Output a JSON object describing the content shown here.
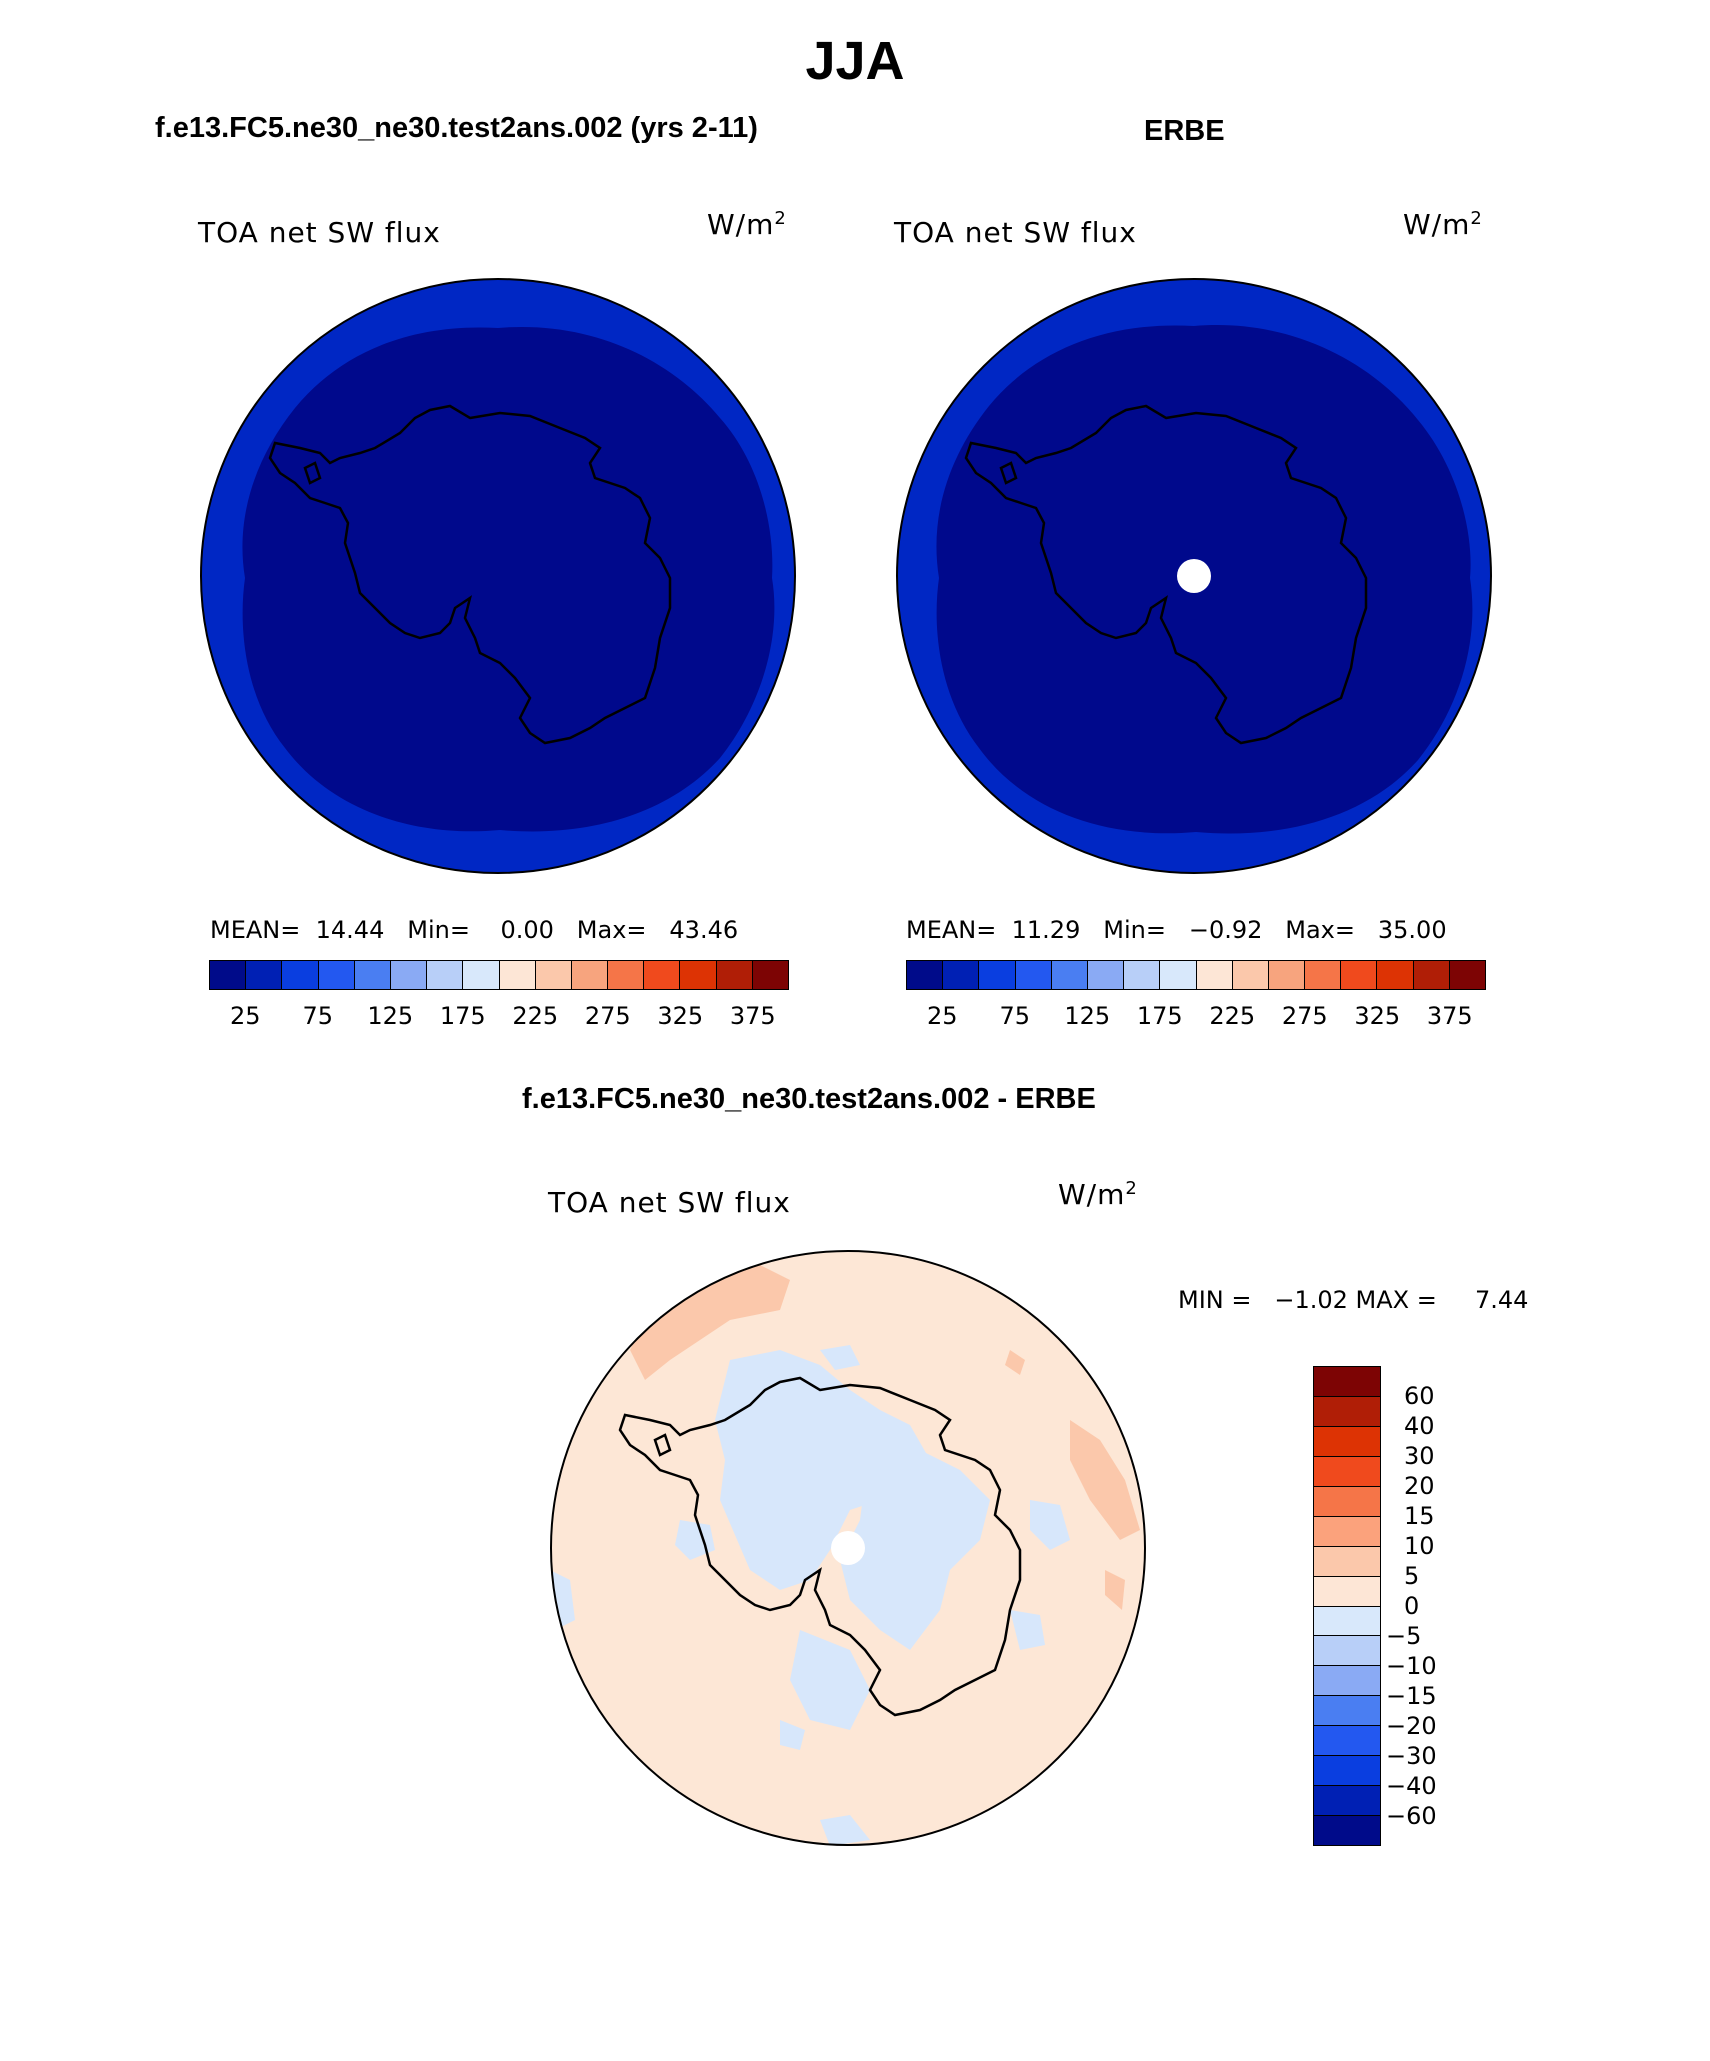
{
  "title": "JJA",
  "panels": [
    {
      "case_title": "f.e13.FC5.ne30_ne30.test2ans.002 (yrs 2-11)",
      "variable_label": "TOA net SW flux",
      "unit_label": "W/m",
      "unit_exp": "2",
      "stats": {
        "mean_label": "MEAN=",
        "mean": "14.44",
        "min_label": "Min=",
        "min": "0.00",
        "max_label": "Max=",
        "max": "43.46"
      }
    },
    {
      "case_title": "ERBE",
      "variable_label": "TOA net SW flux",
      "unit_label": "W/m",
      "unit_exp": "2",
      "stats": {
        "mean_label": "MEAN=",
        "mean": "11.29",
        "min_label": "Min=",
        "min": "−0.92",
        "max_label": "Max=",
        "max": "35.00"
      }
    }
  ],
  "colorbar_abs": {
    "colors": [
      "#000b8a",
      "#0020b4",
      "#0a3ee0",
      "#2358f0",
      "#4a7ef2",
      "#8aaaf4",
      "#b8cff8",
      "#d8e8fb",
      "#fde6d6",
      "#fbc8ab",
      "#f7a47e",
      "#f57548",
      "#f04a1d",
      "#dd3304",
      "#b01e06",
      "#7d0404"
    ],
    "ticks": [
      "25",
      "75",
      "125",
      "175",
      "225",
      "275",
      "325",
      "375"
    ]
  },
  "diff_panel": {
    "case_title": "f.e13.FC5.ne30_ne30.test2ans.002 - ERBE",
    "variable_label": "TOA net SW flux",
    "unit_label": "W/m",
    "unit_exp": "2",
    "stats_text": "MIN =   −1.02 MAX =     7.44"
  },
  "colorbar_diff": {
    "colors": [
      "#7d0404",
      "#b01e06",
      "#dd3304",
      "#f04a1d",
      "#f57548",
      "#fba27c",
      "#fbc8ab",
      "#fde6d6",
      "#d8e8fb",
      "#b8cff8",
      "#8aaaf4",
      "#4a7ef2",
      "#2358f0",
      "#0a3ee0",
      "#0020b4",
      "#000b8a"
    ],
    "ticks": [
      "60",
      "40",
      "30",
      "20",
      "15",
      "10",
      "5",
      "0",
      "−5",
      "−10",
      "−15",
      "−20",
      "−30",
      "−40",
      "−60"
    ]
  },
  "map_colors": {
    "outer_ring": "#0027c4",
    "interior": "#00098c",
    "diff_base": "#fde7d6",
    "diff_pos": "#fbc8ab",
    "diff_neg": "#d7e7fb",
    "missing": "#ffffff"
  }
}
